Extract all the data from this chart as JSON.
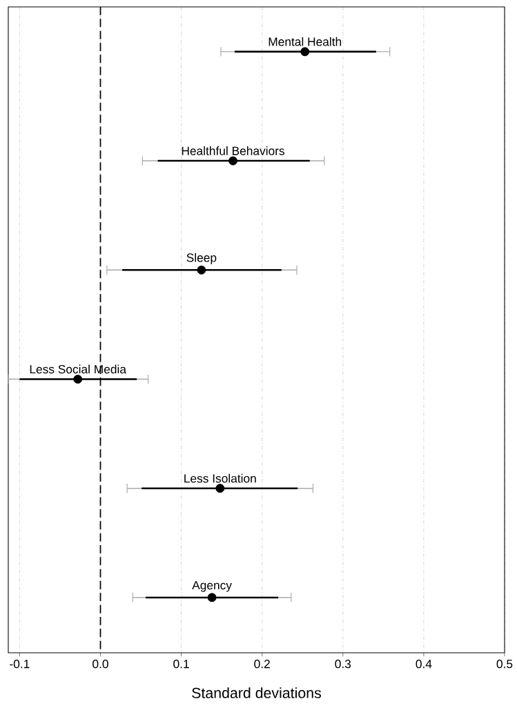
{
  "chart_data": {
    "type": "scatter",
    "orientation": "horizontal",
    "xlabel": "Standard deviations",
    "categories": [
      "Mental Health",
      "Healthful Behaviors",
      "Sleep",
      "Less Social Media",
      "Less Isolation",
      "Agency"
    ],
    "series": [
      {
        "type": "bar",
        "color": "#000000",
        "base": [
          0.166,
          0.071,
          0.027,
          -0.1,
          0.051,
          0.056
        ],
        "values": [
          0.175,
          0.188,
          0.197,
          0.145,
          0.193,
          0.164
        ]
      },
      {
        "color": "#000000",
        "marker": "circle",
        "values": [
          0.253,
          0.164,
          0.125,
          -0.028,
          0.148,
          0.138
        ],
        "errors": [
          [
            0.149,
            0.358
          ],
          [
            0.052,
            0.277
          ],
          [
            0.008,
            0.243
          ],
          [
            -0.114,
            0.059
          ],
          [
            0.033,
            0.263
          ],
          [
            0.04,
            0.236
          ]
        ]
      }
    ],
    "xlim": [
      -0.114,
      0.5
    ],
    "xticks": [
      -0.1,
      {
        "value": 0,
        "label": "0.0"
      },
      0.1,
      0.2,
      0.3,
      0.4,
      0.5
    ],
    "ref_lines": [
      {
        "axis": "x",
        "value": 0,
        "line_style": "dashed",
        "color": "#000000"
      }
    ],
    "grid": "x",
    "tick_labels": "x"
  }
}
